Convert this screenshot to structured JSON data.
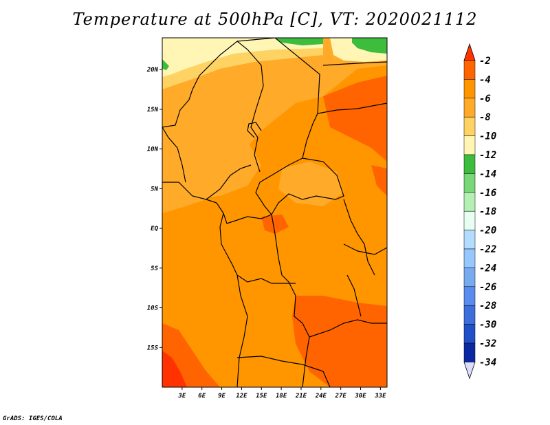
{
  "title": "Temperature at 500hPa [C], VT: 2020021112",
  "credit": "GrADS: IGES/COLA",
  "map": {
    "lon_range": [
      0,
      34
    ],
    "lat_range": [
      -20,
      24
    ],
    "lon_ticks": [
      "3E",
      "6E",
      "9E",
      "12E",
      "15E",
      "18E",
      "21E",
      "24E",
      "27E",
      "30E",
      "33E"
    ],
    "lat_ticks": [
      "20N",
      "15N",
      "10N",
      "5N",
      "EQ",
      "5S",
      "10S",
      "15S"
    ]
  },
  "colorbar": {
    "labels": [
      "-2",
      "-4",
      "-6",
      "-8",
      "-10",
      "-12",
      "-14",
      "-16",
      "-18",
      "-20",
      "-22",
      "-24",
      "-26",
      "-28",
      "-30",
      "-32",
      "-34"
    ],
    "colors": [
      "#ff3200",
      "#ff6400",
      "#ff9600",
      "#ffaa28",
      "#ffd264",
      "#fff5b4",
      "#3cbe3c",
      "#78d778",
      "#b4f0b4",
      "#e6fff0",
      "#b4dcff",
      "#96c8ff",
      "#78aaf0",
      "#5a8cf0",
      "#3c6edc",
      "#2050c8",
      "#0a28a0",
      "#000a6e"
    ],
    "top_arrow_color": "#ff3200",
    "bottom_arrow_color": "#dcdcff"
  }
}
